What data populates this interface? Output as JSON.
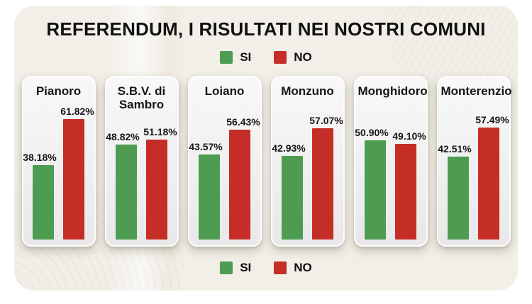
{
  "title": "REFERENDUM, I RISULTATI NEI NOSTRI COMUNI",
  "legend": {
    "si": "SI",
    "no": "NO"
  },
  "colors": {
    "si_green": "#4d9c52",
    "no_red": "#c52d27",
    "panel_background": "#f2efe8",
    "card_background": "#f1f1f1",
    "text": "#111111"
  },
  "chart_data": {
    "type": "bar",
    "title": "REFERENDUM, I RISULTATI NEI NOSTRI COMUNI",
    "categories": [
      "Pianoro",
      "S.B.V. di Sambro",
      "Loiano",
      "Monzuno",
      "Monghidoro",
      "Monterenzio"
    ],
    "series": [
      {
        "name": "SI",
        "color": "#4d9c52",
        "values": [
          38.18,
          48.82,
          43.57,
          42.93,
          50.9,
          42.51
        ]
      },
      {
        "name": "NO",
        "color": "#c52d27",
        "values": [
          61.82,
          51.18,
          56.43,
          57.07,
          49.1,
          57.49
        ]
      }
    ],
    "value_suffix": "%",
    "ylim": [
      0,
      65
    ],
    "grid": false,
    "legend_position": "top and bottom",
    "panels": [
      {
        "name": "Pianoro",
        "si_value": 38.18,
        "no_value": 61.82,
        "si_label": "38.18%",
        "no_label": "61.82%"
      },
      {
        "name": "S.B.V. di Sambro",
        "si_value": 48.82,
        "no_value": 51.18,
        "si_label": "48.82%",
        "no_label": "51.18%"
      },
      {
        "name": "Loiano",
        "si_value": 43.57,
        "no_value": 56.43,
        "si_label": "43.57%",
        "no_label": "56.43%"
      },
      {
        "name": "Monzuno",
        "si_value": 42.93,
        "no_value": 57.07,
        "si_label": "42.93%",
        "no_label": "57.07%"
      },
      {
        "name": "Monghidoro",
        "si_value": 50.9,
        "no_value": 49.1,
        "si_label": "50.90%",
        "no_label": "49.10%"
      },
      {
        "name": "Monterenzio",
        "si_value": 42.51,
        "no_value": 57.49,
        "si_label": "42.51%",
        "no_label": "57.49%"
      }
    ]
  }
}
